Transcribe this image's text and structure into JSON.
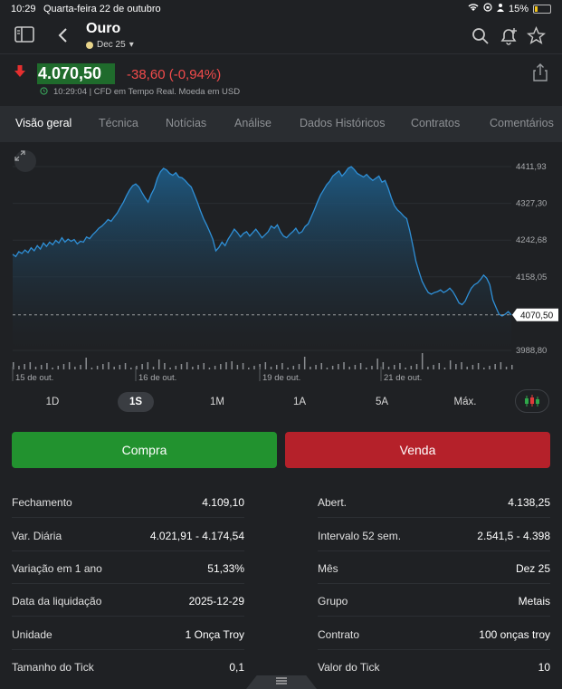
{
  "status_bar": {
    "time": "10:29",
    "date": "Quarta-feira 22 de outubro",
    "battery": "15%"
  },
  "header": {
    "title": "Ouro",
    "contract": "Dec 25"
  },
  "quote": {
    "price": "4.070,50",
    "change": "-38,60 (-0,94%)",
    "meta": "10:29:04 | CFD em Tempo Real. Moeda em USD"
  },
  "tabs": [
    "Visão geral",
    "Técnica",
    "Notícias",
    "Análise",
    "Dados Históricos",
    "Contratos",
    "Comentários"
  ],
  "chart_data": {
    "type": "area",
    "y_ticks": [
      "4411,93",
      "4327,30",
      "4242,68",
      "4158,05",
      "3988,80"
    ],
    "current_price_label": "4070,50",
    "x_ticks": [
      "15 de out.",
      "16 de out.",
      "19 de out.",
      "21 de out."
    ],
    "ylim": [
      3988.8,
      4411.93
    ],
    "y": [
      4210,
      4205,
      4216,
      4212,
      4220,
      4214,
      4225,
      4218,
      4230,
      4222,
      4236,
      4228,
      4238,
      4232,
      4242,
      4236,
      4248,
      4238,
      4245,
      4240,
      4244,
      4234,
      4240,
      4238,
      4250,
      4246,
      4255,
      4262,
      4270,
      4275,
      4282,
      4290,
      4286,
      4296,
      4305,
      4318,
      4330,
      4345,
      4358,
      4368,
      4372,
      4365,
      4352,
      4340,
      4330,
      4348,
      4362,
      4385,
      4400,
      4408,
      4404,
      4396,
      4392,
      4398,
      4388,
      4386,
      4380,
      4372,
      4365,
      4348,
      4330,
      4310,
      4292,
      4278,
      4262,
      4245,
      4218,
      4226,
      4238,
      4230,
      4245,
      4256,
      4268,
      4260,
      4250,
      4258,
      4262,
      4252,
      4260,
      4268,
      4258,
      4248,
      4255,
      4262,
      4275,
      4270,
      4278,
      4262,
      4252,
      4248,
      4256,
      4262,
      4270,
      4258,
      4262,
      4274,
      4280,
      4296,
      4312,
      4330,
      4346,
      4358,
      4370,
      4378,
      4390,
      4396,
      4402,
      4390,
      4398,
      4408,
      4412,
      4405,
      4396,
      4392,
      4388,
      4394,
      4386,
      4380,
      4385,
      4390,
      4376,
      4380,
      4362,
      4340,
      4322,
      4312,
      4306,
      4298,
      4292,
      4264,
      4230,
      4194,
      4170,
      4148,
      4134,
      4122,
      4118,
      4122,
      4124,
      4128,
      4122,
      4126,
      4132,
      4124,
      4112,
      4098,
      4094,
      4102,
      4118,
      4132,
      4140,
      4144,
      4152,
      4162,
      4155,
      4140,
      4105,
      4088,
      4072,
      4068,
      4072,
      4078,
      4070
    ]
  },
  "time_ranges": [
    "1D",
    "1S",
    "1M",
    "1A",
    "5A",
    "Máx."
  ],
  "active_range": "1S",
  "actions": {
    "buy": "Compra",
    "sell": "Venda"
  },
  "stats": {
    "left": [
      {
        "label": "Fechamento",
        "value": "4.109,10"
      },
      {
        "label": "Var. Diária",
        "value": "4.021,91 - 4.174,54"
      },
      {
        "label": "Variação em 1 ano",
        "value": "51,33%"
      },
      {
        "label": "Data da liquidação",
        "value": "2025-12-29"
      },
      {
        "label": "Unidade",
        "value": "1 Onça Troy"
      },
      {
        "label": "Tamanho do Tick",
        "value": "0,1"
      }
    ],
    "right": [
      {
        "label": "Abert.",
        "value": "4.138,25"
      },
      {
        "label": "Intervalo 52 sem.",
        "value": "2.541,5 - 4.398"
      },
      {
        "label": "Mês",
        "value": "Dez 25"
      },
      {
        "label": "Grupo",
        "value": "Metais"
      },
      {
        "label": "Contrato",
        "value": "100 onças troy"
      },
      {
        "label": "Valor do Tick",
        "value": "10"
      }
    ]
  },
  "colors": {
    "up": "#22922f",
    "down": "#b5212a",
    "line": "#2f8fd6",
    "price_bg": "#1f6b2c"
  }
}
